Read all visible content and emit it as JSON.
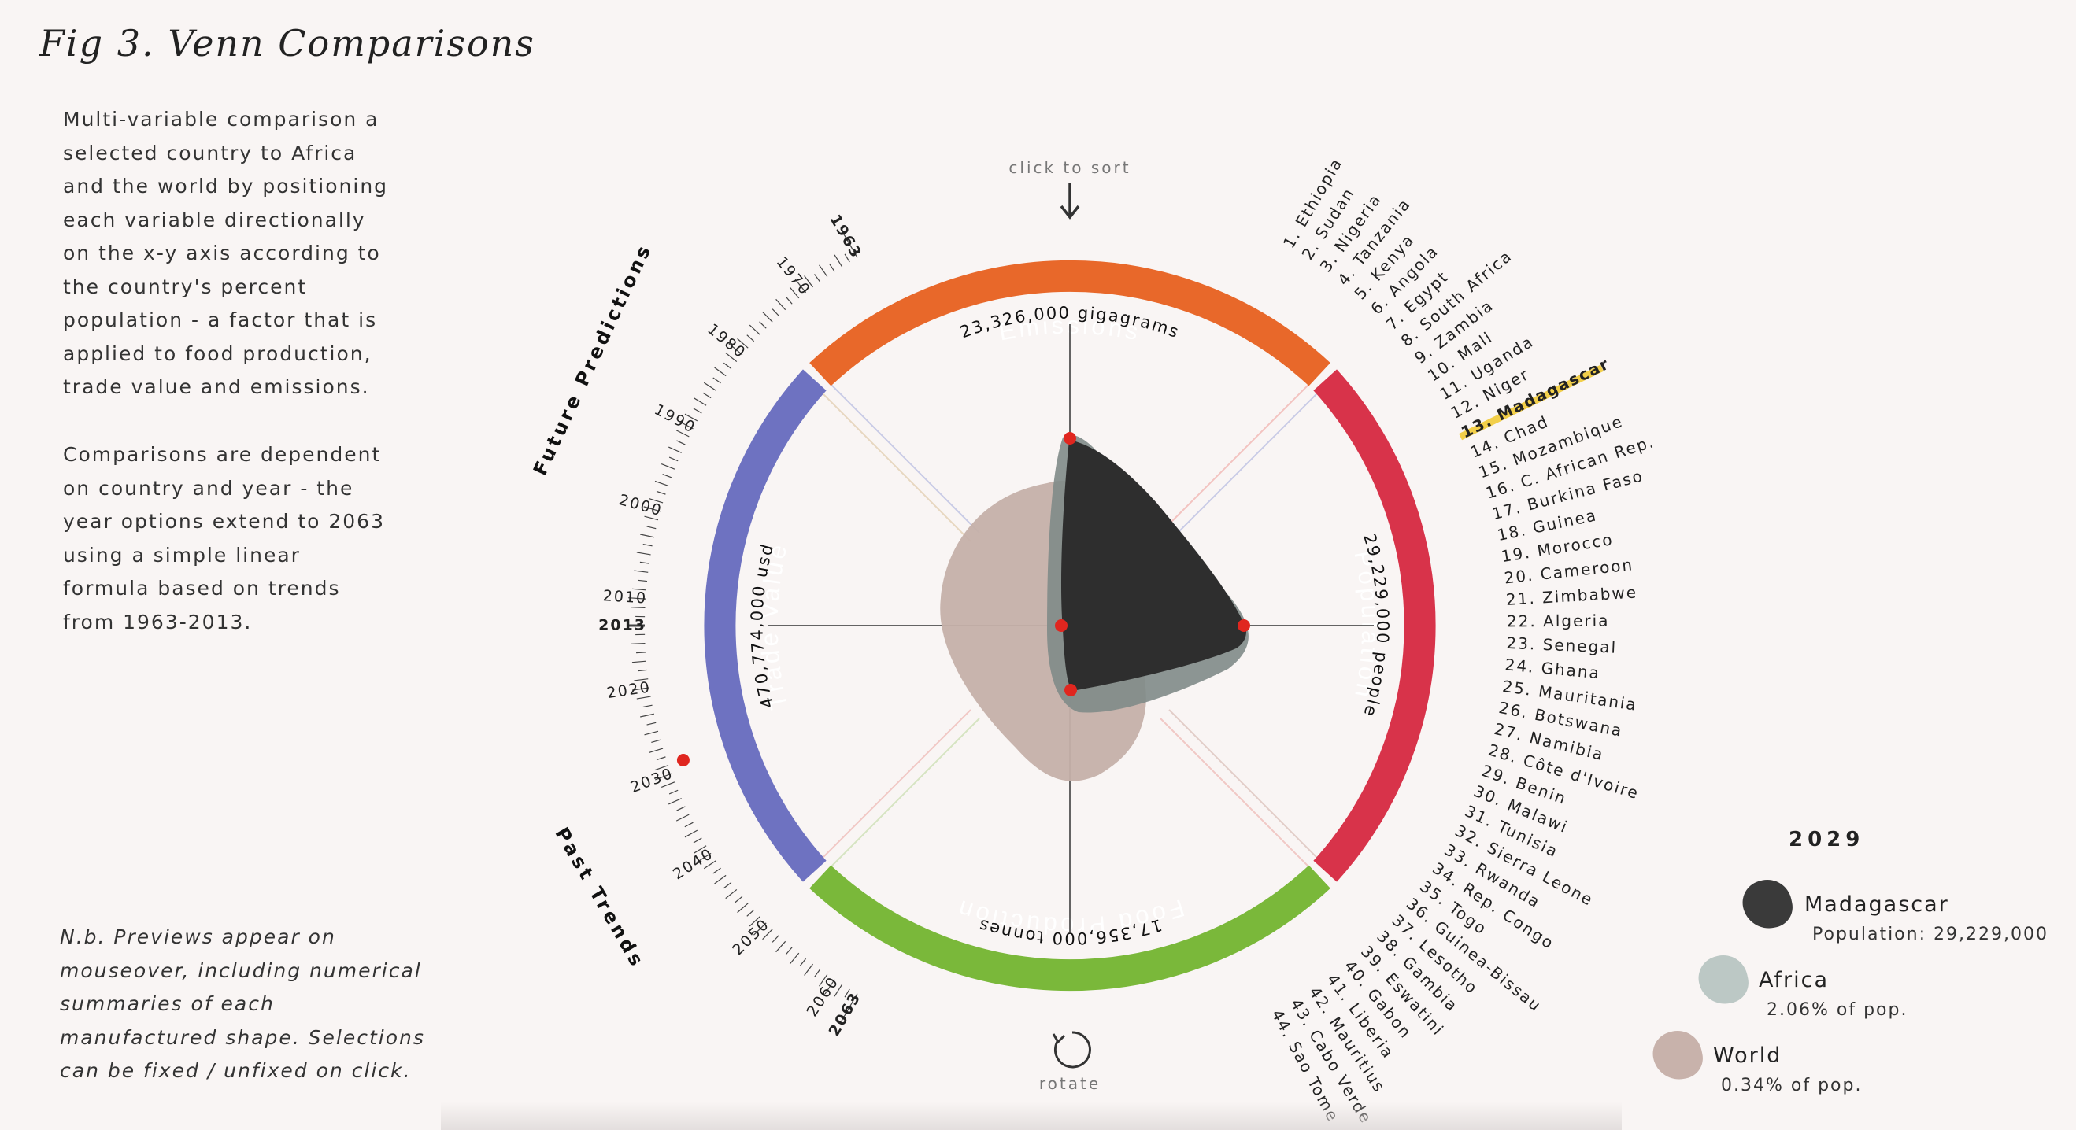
{
  "title": "Fig 3. Venn Comparisons",
  "description": [
    "Multi-variable comparison a selected country to Africa and the world by positioning each variable directionally on the x-y axis according to the country's percent population - a factor that is applied to food production, trade value and emissions.",
    "Comparisons are dependent on country and year - the year options extend to 2063 using a simple linear formula based on trends from 1963-2013."
  ],
  "note": "N.b. Previews appear on mouseover, including numerical summaries of each manufactured shape. Selections can be fixed / unfixed on click.",
  "controls": {
    "sort_hint": "click to sort",
    "rotate_label": "rotate"
  },
  "timeline": {
    "future_label": "Future Predictions",
    "past_label": "Past Trends",
    "start_year": "1963",
    "end_year": "2063",
    "current_year": "2013",
    "selected_year": 2029,
    "tick_labels": [
      "1970",
      "1980",
      "1990",
      "2000",
      "2010",
      "2020",
      "2030",
      "2040",
      "2050",
      "2060"
    ]
  },
  "ring": {
    "emissions": {
      "label": "Emissions",
      "value": "23,326,000 gigagrams",
      "color": "#e8682a"
    },
    "population": {
      "label": "Population",
      "value": "29,229,000 people",
      "color": "#d8334a"
    },
    "food": {
      "label": "Food Production",
      "value": "17,356,000 tonnes",
      "color": "#7ab83a"
    },
    "trade": {
      "label": "Trade Value",
      "value": "470,774,000 usd",
      "color": "#6e72c1"
    }
  },
  "countries": [
    "1. Ethiopia",
    "2. Sudan",
    "3. Nigeria",
    "4. Tanzania",
    "5. Kenya",
    "6. Angola",
    "7. Egypt",
    "8. South Africa",
    "9. Zambia",
    "10. Mali",
    "11. Uganda",
    "12. Niger",
    "13. Madagascar",
    "14. Chad",
    "15. Mozambique",
    "16. C. African Rep.",
    "17. Burkina Faso",
    "18. Guinea",
    "19. Morocco",
    "20. Cameroon",
    "21. Zimbabwe",
    "22. Algeria",
    "23. Senegal",
    "24. Ghana",
    "25. Mauritania",
    "26. Botswana",
    "27. Namibia",
    "28. Côte d'Ivoire",
    "29. Benin",
    "30. Malawi",
    "31. Tunisia",
    "32. Sierra Leone",
    "33. Rwanda",
    "34. Rep. Congo",
    "35. Togo",
    "36. Guinea-Bissau",
    "37. Lesotho",
    "38. Gambia",
    "39. Eswatini",
    "40. Gabon",
    "41. Liberia",
    "42. Mauritius",
    "43. Cabo Verde",
    "44. Sao Tome"
  ],
  "selected_country_index": 12,
  "legend": {
    "year": "2029",
    "items": [
      {
        "name": "Madagascar",
        "sub": "Population: 29,229,000",
        "color": "#3a3a3a"
      },
      {
        "name": "Africa",
        "sub": "2.06% of pop.",
        "color": "#bcc8c5"
      },
      {
        "name": "World",
        "sub": "0.34% of pop.",
        "color": "#c8b2ab"
      }
    ]
  },
  "colors": {
    "highlight": "#f2cf4a",
    "marker": "#e0261f",
    "madagascar": "#2e2e2e",
    "africa": "#8d9794",
    "world": "#c5b0a9"
  }
}
